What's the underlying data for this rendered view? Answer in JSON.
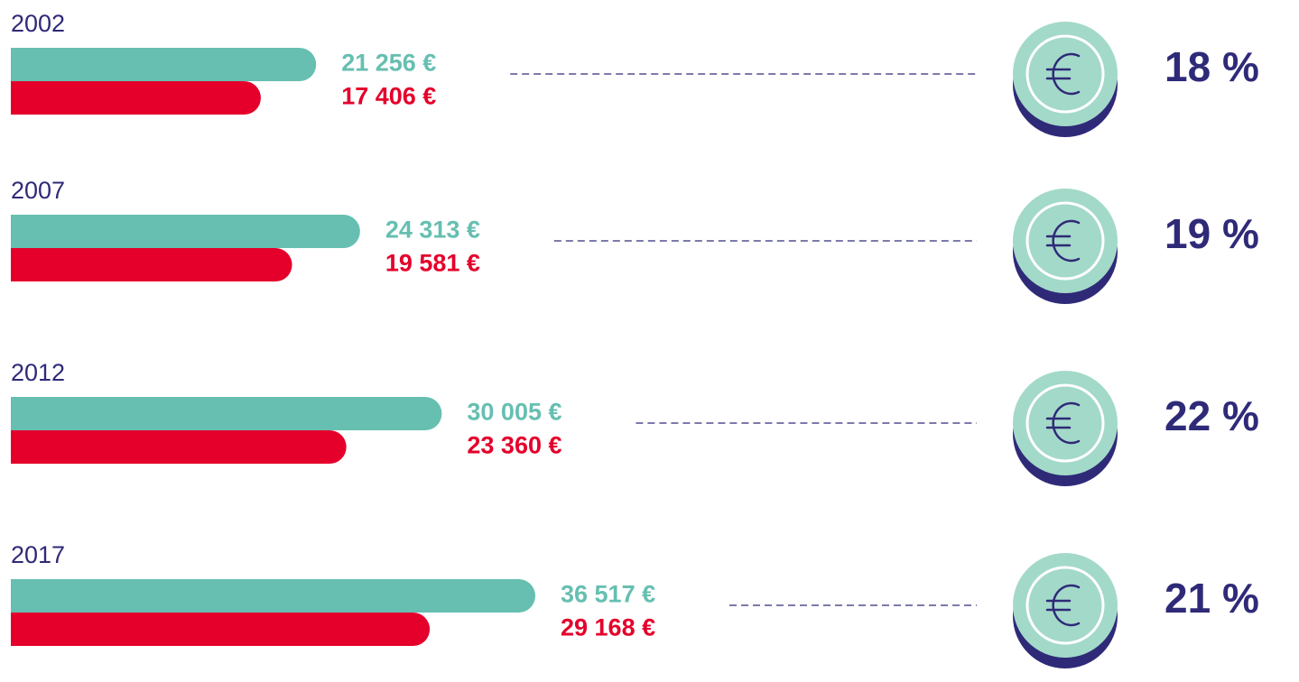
{
  "chart_data": {
    "type": "bar",
    "orientation": "horizontal",
    "categories": [
      "2002",
      "2007",
      "2012",
      "2017"
    ],
    "series": [
      {
        "color": "#66bfb1",
        "values": [
          21256,
          24313,
          30005,
          36517
        ],
        "value_labels": [
          "21 256 €",
          "24 313 €",
          "30 005 €",
          "36 517 €"
        ]
      },
      {
        "color": "#e4002b",
        "values": [
          17406,
          19581,
          23360,
          29168
        ],
        "value_labels": [
          "17 406 €",
          "19 581 €",
          "23 360 €",
          "29 168 €"
        ]
      }
    ],
    "shares": {
      "color": "#2f2a78",
      "values": [
        18,
        19,
        22,
        21
      ],
      "value_labels": [
        "18 %",
        "19 %",
        "22 %",
        "21 %"
      ]
    }
  }
}
